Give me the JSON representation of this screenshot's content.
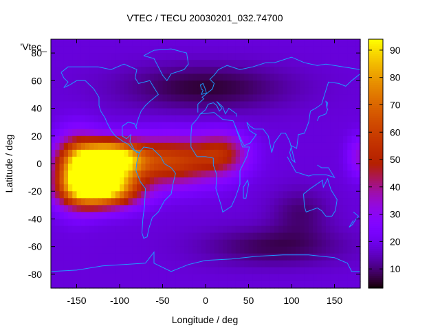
{
  "chart_data": {
    "type": "heatmap",
    "title": "VTEC / TECU 20030201_032.74700",
    "xlabel": "Longitude / deg",
    "ylabel": "Latitude / deg",
    "series_label": "'Vtec_",
    "xlim": [
      -180,
      180
    ],
    "ylim": [
      -90,
      90
    ],
    "x_ticks": [
      -150,
      -100,
      -50,
      0,
      50,
      100,
      150
    ],
    "x_tick_labels": [
      "-150",
      "-100",
      "-50",
      "0",
      "50",
      "100",
      "150"
    ],
    "y_ticks": [
      -80,
      -60,
      -40,
      -20,
      0,
      20,
      40,
      60,
      80
    ],
    "y_tick_labels": [
      "-80",
      "-60",
      "-40",
      "-20",
      "0",
      "20",
      "40",
      "60",
      "80"
    ],
    "colorbar": {
      "range": [
        3,
        94
      ],
      "ticks": [
        10,
        20,
        30,
        40,
        50,
        60,
        70,
        80,
        90
      ],
      "tick_labels": [
        "10",
        "20",
        "30",
        "40",
        "50",
        "60",
        "70",
        "80",
        "90"
      ]
    },
    "grid_resolution_deg": 5,
    "background_vtec": 18,
    "features": [
      {
        "name": "south-american-crest-north",
        "lon": -113,
        "lat": 3,
        "peak": 90,
        "sigma_lon": 25,
        "sigma_lat": 9
      },
      {
        "name": "south-american-crest-south",
        "lon": -120,
        "lat": -18,
        "peak": 82,
        "sigma_lon": 28,
        "sigma_lat": 9
      },
      {
        "name": "eastern-pacific-equatorial",
        "lon": -150,
        "lat": -5,
        "peak": 55,
        "sigma_lon": 18,
        "sigma_lat": 16
      },
      {
        "name": "atlantic-tongue",
        "lon": -40,
        "lat": 2,
        "peak": 42,
        "sigma_lon": 40,
        "sigma_lat": 12
      },
      {
        "name": "african-patch",
        "lon": 20,
        "lat": 8,
        "peak": 24,
        "sigma_lon": 20,
        "sigma_lat": 10
      },
      {
        "name": "far-east-edge",
        "lon": 180,
        "lat": 5,
        "peak": 16,
        "sigma_lon": 10,
        "sigma_lat": 10
      },
      {
        "name": "north-atlantic-depression",
        "lon": 0,
        "lat": 55,
        "peak": -12,
        "sigma_lon": 70,
        "sigma_lat": 12
      },
      {
        "name": "southern-ocean-depression",
        "lon": 80,
        "lat": -60,
        "peak": -10,
        "sigma_lon": 60,
        "sigma_lat": 10
      },
      {
        "name": "australian-depression",
        "lon": 110,
        "lat": -35,
        "peak": -8,
        "sigma_lon": 25,
        "sigma_lat": 12
      }
    ],
    "coastlines": [
      {
        "name": "north-america",
        "points": [
          [
            -168,
            66
          ],
          [
            -160,
            70
          ],
          [
            -140,
            70
          ],
          [
            -125,
            70
          ],
          [
            -110,
            68
          ],
          [
            -95,
            72
          ],
          [
            -80,
            68
          ],
          [
            -82,
            62
          ],
          [
            -78,
            58
          ],
          [
            -65,
            60
          ],
          [
            -60,
            55
          ],
          [
            -55,
            50
          ],
          [
            -65,
            45
          ],
          [
            -70,
            42
          ],
          [
            -75,
            38
          ],
          [
            -78,
            33
          ],
          [
            -81,
            27
          ],
          [
            -80,
            25
          ],
          [
            -83,
            29
          ],
          [
            -90,
            30
          ],
          [
            -97,
            27
          ],
          [
            -97,
            20
          ],
          [
            -92,
            18
          ],
          [
            -87,
            21
          ],
          [
            -88,
            16
          ],
          [
            -83,
            10
          ],
          [
            -80,
            8
          ],
          [
            -77,
            8
          ]
        ]
      },
      {
        "name": "north-america-pacific",
        "points": [
          [
            -77,
            8
          ],
          [
            -84,
            10
          ],
          [
            -90,
            14
          ],
          [
            -96,
            16
          ],
          [
            -105,
            20
          ],
          [
            -110,
            24
          ],
          [
            -115,
            30
          ],
          [
            -117,
            33
          ],
          [
            -122,
            38
          ],
          [
            -124,
            42
          ],
          [
            -124,
            48
          ],
          [
            -130,
            54
          ],
          [
            -140,
            60
          ],
          [
            -150,
            60
          ],
          [
            -158,
            57
          ],
          [
            -165,
            55
          ],
          [
            -160,
            59
          ],
          [
            -165,
            62
          ],
          [
            -168,
            66
          ]
        ]
      },
      {
        "name": "greenland",
        "points": [
          [
            -72,
            78
          ],
          [
            -60,
            82
          ],
          [
            -40,
            83
          ],
          [
            -22,
            80
          ],
          [
            -20,
            72
          ],
          [
            -25,
            68
          ],
          [
            -40,
            65
          ],
          [
            -45,
            60
          ],
          [
            -50,
            64
          ],
          [
            -55,
            70
          ],
          [
            -60,
            76
          ],
          [
            -72,
            78
          ]
        ]
      },
      {
        "name": "south-america",
        "points": [
          [
            -77,
            8
          ],
          [
            -72,
            12
          ],
          [
            -62,
            11
          ],
          [
            -52,
            5
          ],
          [
            -48,
            0
          ],
          [
            -40,
            -3
          ],
          [
            -35,
            -7
          ],
          [
            -38,
            -15
          ],
          [
            -40,
            -22
          ],
          [
            -48,
            -27
          ],
          [
            -55,
            -35
          ],
          [
            -62,
            -39
          ],
          [
            -66,
            -47
          ],
          [
            -68,
            -53
          ],
          [
            -72,
            -54
          ],
          [
            -74,
            -50
          ],
          [
            -73,
            -40
          ],
          [
            -71,
            -30
          ],
          [
            -70,
            -18
          ],
          [
            -76,
            -13
          ],
          [
            -81,
            -5
          ],
          [
            -80,
            1
          ],
          [
            -77,
            8
          ]
        ]
      },
      {
        "name": "africa",
        "points": [
          [
            -17,
            21
          ],
          [
            -16,
            28
          ],
          [
            -10,
            32
          ],
          [
            -6,
            36
          ],
          [
            10,
            37
          ],
          [
            20,
            32
          ],
          [
            32,
            31
          ],
          [
            34,
            28
          ],
          [
            43,
            12
          ],
          [
            51,
            12
          ],
          [
            48,
            5
          ],
          [
            40,
            -5
          ],
          [
            40,
            -15
          ],
          [
            35,
            -24
          ],
          [
            30,
            -31
          ],
          [
            20,
            -35
          ],
          [
            18,
            -30
          ],
          [
            12,
            -18
          ],
          [
            13,
            -8
          ],
          [
            9,
            -1
          ],
          [
            9,
            4
          ],
          [
            0,
            5
          ],
          [
            -10,
            5
          ],
          [
            -17,
            12
          ],
          [
            -17,
            21
          ]
        ]
      },
      {
        "name": "eurasia",
        "points": [
          [
            -9,
            37
          ],
          [
            -9,
            43
          ],
          [
            -2,
            47
          ],
          [
            -4,
            48
          ],
          [
            2,
            51
          ],
          [
            8,
            54
          ],
          [
            10,
            58
          ],
          [
            5,
            61
          ],
          [
            10,
            64
          ],
          [
            15,
            68
          ],
          [
            25,
            71
          ],
          [
            40,
            68
          ],
          [
            55,
            70
          ],
          [
            70,
            73
          ],
          [
            80,
            73
          ],
          [
            100,
            77
          ],
          [
            115,
            73
          ],
          [
            130,
            71
          ],
          [
            140,
            72
          ],
          [
            160,
            70
          ],
          [
            170,
            69
          ],
          [
            180,
            68
          ]
        ]
      },
      {
        "name": "asia-south",
        "points": [
          [
            180,
            65
          ],
          [
            170,
            60
          ],
          [
            163,
            56
          ],
          [
            155,
            58
          ],
          [
            143,
            59
          ],
          [
            140,
            53
          ],
          [
            135,
            43
          ],
          [
            128,
            40
          ],
          [
            122,
            38
          ],
          [
            120,
            30
          ],
          [
            115,
            22
          ],
          [
            108,
            21
          ],
          [
            106,
            11
          ],
          [
            100,
            13
          ],
          [
            98,
            8
          ],
          [
            100,
            3
          ],
          [
            104,
            1
          ],
          [
            98,
            16
          ],
          [
            93,
            22
          ],
          [
            88,
            22
          ],
          [
            80,
            15
          ],
          [
            77,
            8
          ],
          [
            73,
            20
          ],
          [
            67,
            25
          ],
          [
            57,
            25
          ],
          [
            52,
            27
          ],
          [
            48,
            30
          ],
          [
            51,
            24
          ],
          [
            56,
            22
          ],
          [
            59,
            21
          ],
          [
            52,
            15
          ],
          [
            45,
            13
          ],
          [
            43,
            15
          ],
          [
            38,
            22
          ],
          [
            34,
            28
          ]
        ]
      },
      {
        "name": "mediterranean-north",
        "points": [
          [
            -6,
            36
          ],
          [
            0,
            39
          ],
          [
            3,
            43
          ],
          [
            9,
            44
          ],
          [
            13,
            42
          ],
          [
            16,
            38
          ],
          [
            19,
            40
          ],
          [
            13,
            45
          ],
          [
            20,
            41
          ],
          [
            23,
            36
          ],
          [
            27,
            40
          ],
          [
            36,
            36
          ],
          [
            36,
            34
          ]
        ]
      },
      {
        "name": "australia",
        "points": [
          [
            114,
            -22
          ],
          [
            122,
            -18
          ],
          [
            129,
            -15
          ],
          [
            136,
            -12
          ],
          [
            137,
            -17
          ],
          [
            142,
            -11
          ],
          [
            146,
            -19
          ],
          [
            153,
            -26
          ],
          [
            151,
            -34
          ],
          [
            147,
            -38
          ],
          [
            140,
            -38
          ],
          [
            135,
            -34
          ],
          [
            130,
            -32
          ],
          [
            117,
            -35
          ],
          [
            115,
            -31
          ],
          [
            114,
            -22
          ]
        ]
      },
      {
        "name": "antarctica",
        "points": [
          [
            -180,
            -78
          ],
          [
            -150,
            -77
          ],
          [
            -120,
            -74
          ],
          [
            -95,
            -73
          ],
          [
            -70,
            -72
          ],
          [
            -60,
            -64
          ],
          [
            -60,
            -72
          ],
          [
            -40,
            -78
          ],
          [
            -20,
            -73
          ],
          [
            0,
            -70
          ],
          [
            30,
            -69
          ],
          [
            60,
            -67
          ],
          [
            90,
            -66
          ],
          [
            120,
            -66
          ],
          [
            150,
            -68
          ],
          [
            165,
            -72
          ],
          [
            170,
            -78
          ],
          [
            180,
            -78
          ]
        ]
      },
      {
        "name": "uk",
        "points": [
          [
            -5,
            50
          ],
          [
            1,
            51
          ],
          [
            -1,
            55
          ],
          [
            -3,
            58
          ],
          [
            -6,
            57
          ],
          [
            -5,
            54
          ],
          [
            -3,
            53
          ],
          [
            -5,
            50
          ]
        ]
      },
      {
        "name": "japan",
        "points": [
          [
            130,
            31
          ],
          [
            132,
            34
          ],
          [
            136,
            35
          ],
          [
            140,
            36
          ],
          [
            142,
            39
          ],
          [
            141,
            41
          ],
          [
            140,
            45
          ],
          [
            142,
            44
          ],
          [
            141,
            40
          ]
        ]
      },
      {
        "name": "indonesia",
        "points": [
          [
            95,
            5
          ],
          [
            105,
            -6
          ],
          [
            115,
            -8
          ],
          [
            120,
            -9
          ],
          [
            125,
            -8
          ],
          [
            140,
            -8
          ],
          [
            150,
            -10
          ],
          [
            143,
            -3
          ],
          [
            135,
            -3
          ],
          [
            130,
            -1
          ]
        ]
      },
      {
        "name": "madagascar",
        "points": [
          [
            44,
            -25
          ],
          [
            47,
            -25
          ],
          [
            50,
            -15
          ],
          [
            49,
            -12
          ],
          [
            44,
            -17
          ],
          [
            44,
            -25
          ]
        ]
      },
      {
        "name": "new-zealand",
        "points": [
          [
            172,
            -35
          ],
          [
            178,
            -38
          ],
          [
            174,
            -41
          ],
          [
            171,
            -44
          ],
          [
            167,
            -46
          ],
          [
            172,
            -41
          ]
        ]
      }
    ]
  }
}
